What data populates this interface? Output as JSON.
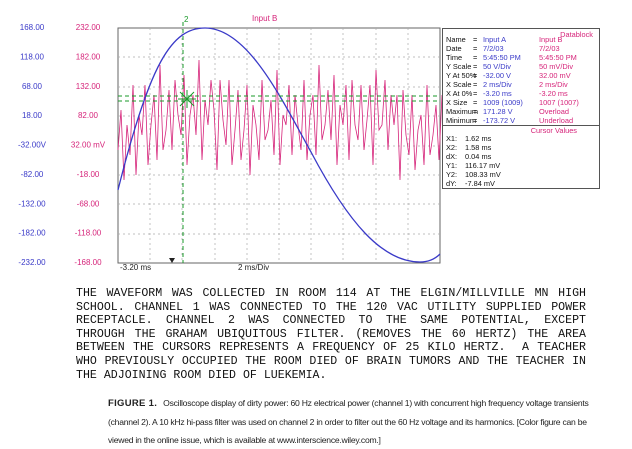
{
  "plot": {
    "title": "Input B",
    "axis_a": [
      "168.00",
      "118.00",
      "68.00",
      "18.00",
      "-32.00V",
      "-82.00",
      "-132.00",
      "-182.00",
      "-232.00"
    ],
    "axis_b": [
      "232.00",
      "182.00",
      "132.00",
      "82.00",
      "32.00 mV",
      "-18.00",
      "-68.00",
      "-118.00",
      "-168.00"
    ],
    "x_start": "-3.20 ms",
    "x_scale": "2 ms/Div"
  },
  "datablock": {
    "title": "Datablock",
    "rows": [
      [
        "Name",
        "=",
        "Input A",
        "Input B"
      ],
      [
        "Date",
        "=",
        "7/2/03",
        "7/2/03"
      ],
      [
        "Time",
        "=",
        "5:45:50 PM",
        "5:45:50 PM"
      ],
      [
        "Y Scale",
        "=",
        "50   V/Div",
        "50   mV/Div"
      ],
      [
        "Y At 50%",
        "=",
        "-32.00 V",
        "32.00 mV"
      ],
      [
        "X Scale",
        "=",
        "2    ms/Div",
        "2    ms/Div"
      ],
      [
        "X At 0%",
        "=",
        "-3.20 ms",
        "-3.20 ms"
      ],
      [
        "X Size",
        "=",
        "1009 (1009)",
        "1007 (1007)"
      ],
      [
        "Maximum",
        "=",
        "171.28 V",
        "Overload"
      ],
      [
        "Minimum",
        "=",
        "-173.72 V",
        "Underload"
      ]
    ]
  },
  "cursor_values": {
    "title": "Cursor Values",
    "rows": [
      [
        "X1:",
        "1.62 ms"
      ],
      [
        "X2:",
        "1.58 ms"
      ],
      [
        "dX:",
        "0.04 ms"
      ],
      [
        "Y1:",
        "116.17 mV"
      ],
      [
        "Y2:",
        "108.33 mV"
      ],
      [
        "dY:",
        "-7.84 mV"
      ]
    ]
  },
  "note": [
    "THE WAVEFORM WAS COLLECTED IN ROOM 114 AT THE ELGIN/MILLVILLE MN HIGH",
    "SCHOOL. CHANNEL 1 WAS CONNECTED TO THE 120 VAC UTILITY SUPPLIED POWER",
    "RECEPTACLE. CHANNEL 2 WAS CONNECTED TO THE SAME POTENTIAL, EXCEPT",
    "THROUGH THE GRAHAM UBIQUITOUS FILTER. (REMOVES THE 60 HERTZ) THE AREA",
    "BETWEEN THE CURSORS REPRESENTS A FREQUENCY OF 25 KILO HERTZ.  A TEACHER",
    "WHO PREVIOUSLY OCCUPIED THE ROOM DIED OF BRAIN TUMORS AND THE TEACHER IN",
    "THE ADJOINING ROOM DIED OF LUEKEMIA."
  ],
  "caption": {
    "label": "FIGURE 1.",
    "text": "Oscilloscope display of dirty power: 60 Hz electrical power (channel 1) with concurrent high frequency voltage transients (channel 2). A 10 kHz hi-pass filter was used on channel 2 in order to filter out the 60 Hz voltage and its harmonics. [Color figure can be viewed in the online issue, which is available at www.interscience.wiley.com.]"
  }
}
